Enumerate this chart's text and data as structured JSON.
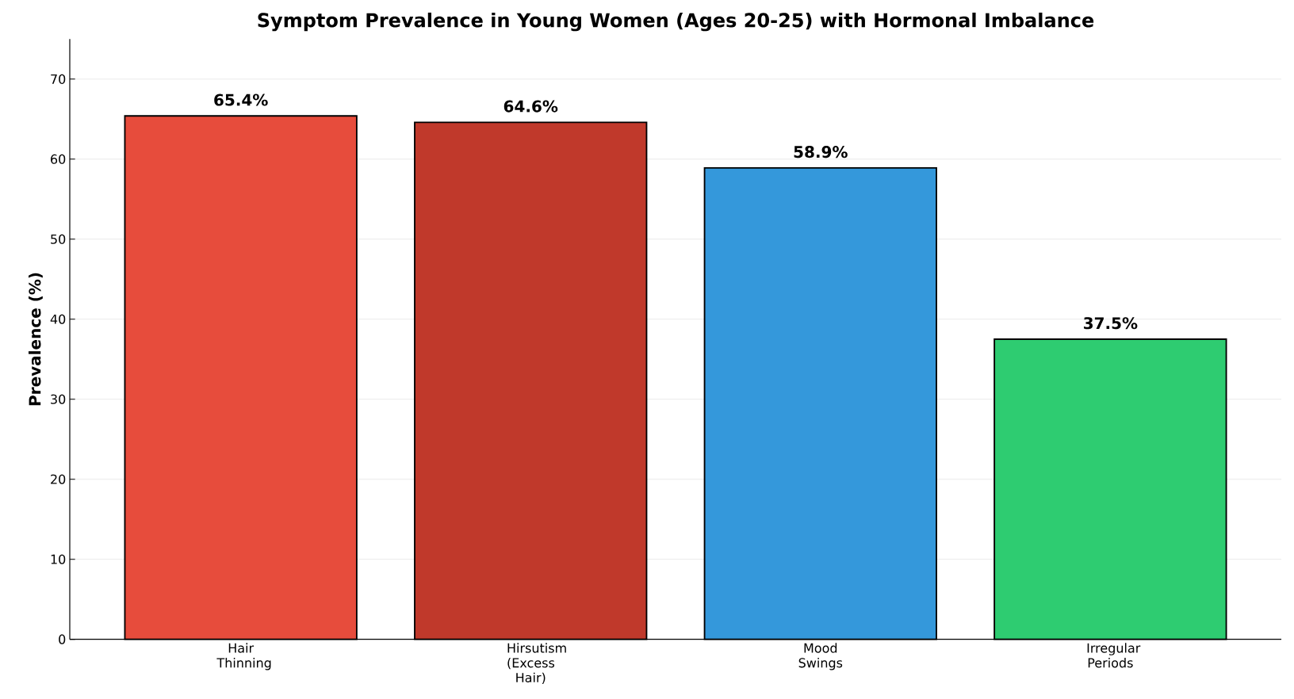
{
  "chart_data": {
    "type": "bar",
    "title": "Symptom Prevalence in Young Women (Ages 20-25) with Hormonal Imbalance",
    "ylabel": "Prevalence (%)",
    "categories": [
      "Hair Thinning",
      "Hirsutism (Excess Hair)",
      "Mood Swings",
      "Irregular Periods"
    ],
    "values": [
      65.4,
      64.6,
      58.9,
      37.5
    ],
    "colors": [
      "#e74c3c",
      "#c0392b",
      "#3498db",
      "#2ecc71"
    ],
    "value_labels": [
      "65.4%",
      "64.6%",
      "58.9%",
      "37.5%"
    ],
    "ylim": [
      0,
      75
    ],
    "yticks": [
      0,
      10,
      20,
      30,
      40,
      50,
      60,
      70
    ],
    "grid": "y"
  }
}
